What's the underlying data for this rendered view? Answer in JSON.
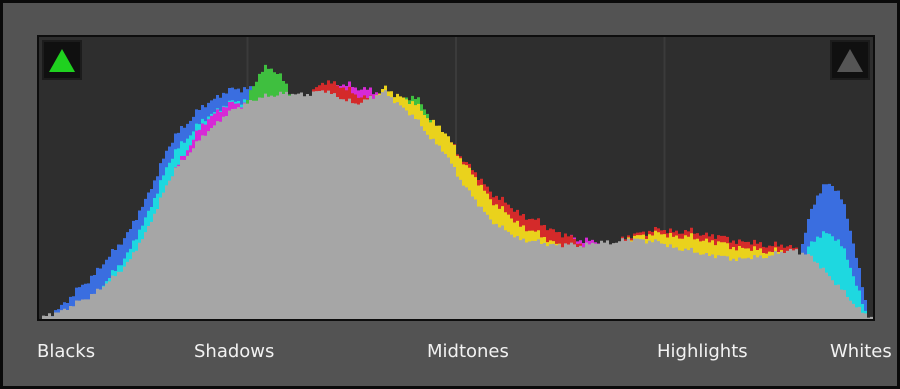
{
  "histogram": {
    "regions": {
      "blacks": "Blacks",
      "shadows": "Shadows",
      "midtones": "Midtones",
      "highlights": "Highlights",
      "whites": "Whites"
    },
    "shadow_clipping": {
      "icon": "triangle-up-icon",
      "active": true,
      "color": "#1fd11f"
    },
    "highlight_clipping": {
      "icon": "triangle-up-icon",
      "active": false,
      "color": "#555555"
    },
    "colors": {
      "background": "#2e2e2e",
      "grid": "#3b3b3b",
      "luminance": "#a6a6a6",
      "red": "#d42a2a",
      "green": "#3fbf3f",
      "blue": "#3a6ee0",
      "yellow": "#ead21c",
      "magenta": "#d62ad6",
      "cyan": "#1ed8e0"
    }
  }
}
